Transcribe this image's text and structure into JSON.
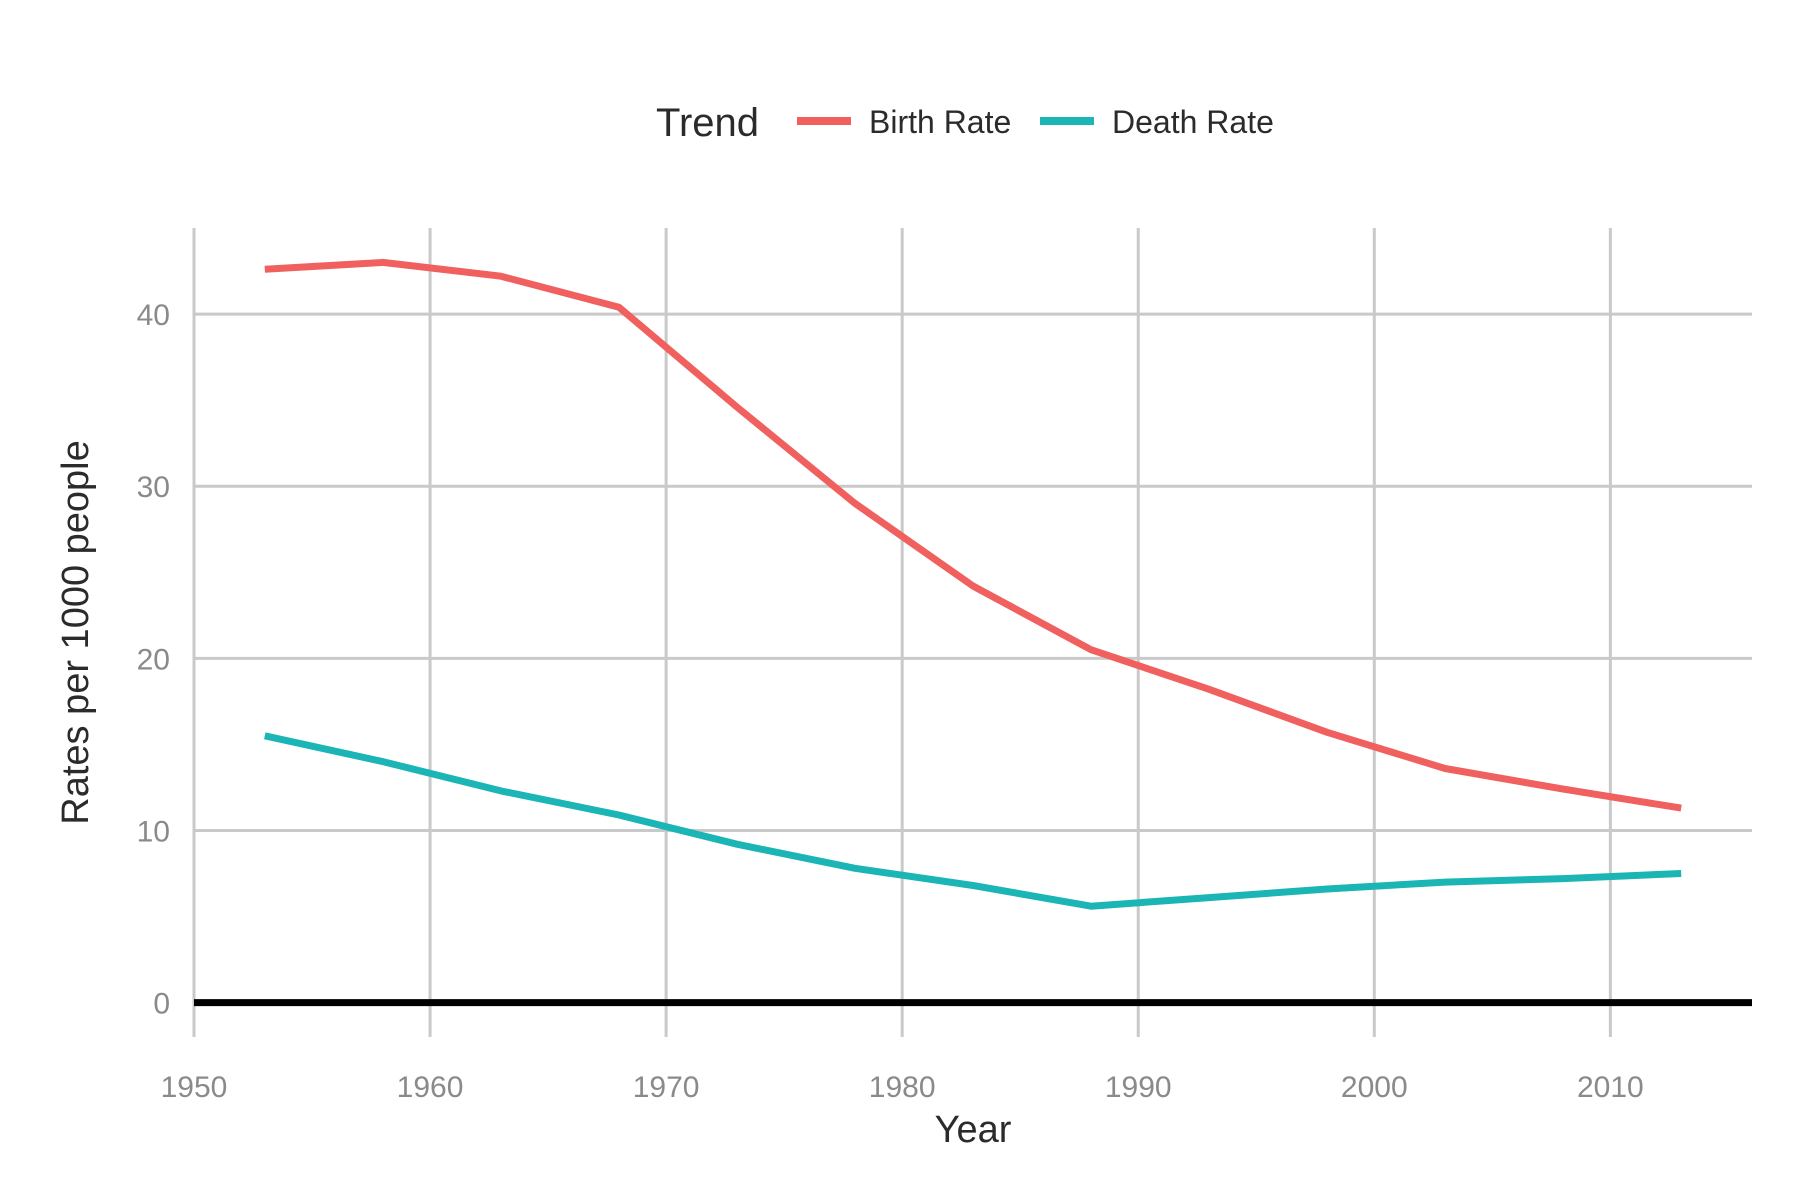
{
  "chart_data": {
    "type": "line",
    "xlabel": "Year",
    "ylabel": "Rates per 1000 people",
    "xlim": [
      1950,
      2016
    ],
    "ylim": [
      -2,
      45
    ],
    "xticks": [
      1950,
      1960,
      1970,
      1980,
      1990,
      2000,
      2010
    ],
    "yticks": [
      0,
      10,
      20,
      30,
      40
    ],
    "grid": true,
    "legend": {
      "title": "Trend",
      "placement": "top"
    },
    "hline": 0,
    "series": [
      {
        "name": "Birth Rate",
        "color": "#f0605e",
        "x": [
          1953,
          1958,
          1963,
          1968,
          1973,
          1978,
          1983,
          1988,
          1993,
          1998,
          2003,
          2008,
          2013
        ],
        "y": [
          42.6,
          43.0,
          42.2,
          40.4,
          34.6,
          29.0,
          24.2,
          20.5,
          18.2,
          15.7,
          13.6,
          12.4,
          11.3
        ]
      },
      {
        "name": "Death Rate",
        "color": "#1bb5b6",
        "x": [
          1953,
          1958,
          1963,
          1968,
          1973,
          1978,
          1983,
          1988,
          1993,
          1998,
          2003,
          2008,
          2013
        ],
        "y": [
          15.5,
          14.0,
          12.3,
          10.9,
          9.2,
          7.8,
          6.8,
          5.6,
          6.1,
          6.6,
          7.0,
          7.2,
          7.5
        ]
      }
    ]
  }
}
